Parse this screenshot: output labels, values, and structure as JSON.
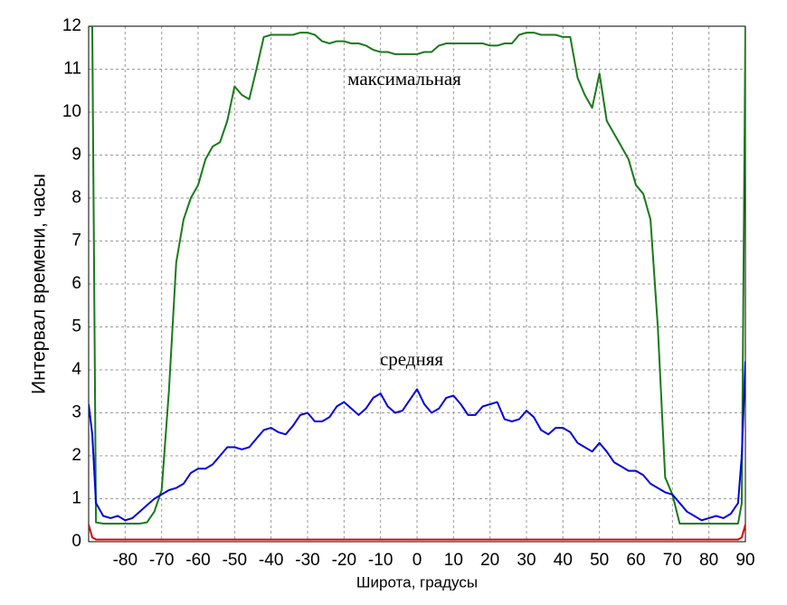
{
  "chart_data": {
    "type": "line",
    "x_label": "Широта, градусы",
    "y_label": "Интервал времени, часы",
    "annotations": [
      "максимальная",
      "средняя"
    ],
    "x": [
      -90,
      -89,
      -88,
      -86,
      -84,
      -82,
      -80,
      -78,
      -76,
      -74,
      -72,
      -70,
      -68,
      -66,
      -64,
      -62,
      -60,
      -58,
      -56,
      -54,
      -52,
      -50,
      -48,
      -46,
      -44,
      -42,
      -40,
      -38,
      -36,
      -34,
      -32,
      -30,
      -28,
      -26,
      -24,
      -22,
      -20,
      -18,
      -16,
      -14,
      -12,
      -10,
      -8,
      -6,
      -4,
      -2,
      0,
      2,
      4,
      6,
      8,
      10,
      12,
      14,
      16,
      18,
      20,
      22,
      24,
      26,
      28,
      30,
      32,
      34,
      36,
      38,
      40,
      42,
      44,
      46,
      48,
      50,
      52,
      54,
      56,
      58,
      60,
      62,
      64,
      66,
      68,
      70,
      72,
      74,
      76,
      78,
      80,
      82,
      84,
      86,
      88,
      89,
      90
    ],
    "series": [
      {
        "color": "#1a7a1a",
        "values": [
          12,
          12,
          0.45,
          0.42,
          0.42,
          0.42,
          0.42,
          0.42,
          0.42,
          0.45,
          0.7,
          1.2,
          3.5,
          6.5,
          7.5,
          8.0,
          8.3,
          8.9,
          9.2,
          9.3,
          9.8,
          10.6,
          10.4,
          10.3,
          11.0,
          11.75,
          11.8,
          11.8,
          11.8,
          11.8,
          11.85,
          11.85,
          11.8,
          11.65,
          11.6,
          11.65,
          11.65,
          11.6,
          11.6,
          11.55,
          11.45,
          11.4,
          11.4,
          11.35,
          11.35,
          11.35,
          11.35,
          11.4,
          11.4,
          11.55,
          11.6,
          11.6,
          11.6,
          11.6,
          11.6,
          11.6,
          11.55,
          11.55,
          11.6,
          11.6,
          11.8,
          11.85,
          11.85,
          11.8,
          11.8,
          11.8,
          11.75,
          11.75,
          10.8,
          10.4,
          10.1,
          10.9,
          9.8,
          9.5,
          9.2,
          8.9,
          8.3,
          8.1,
          7.5,
          5.0,
          1.5,
          1.1,
          0.42,
          0.42,
          0.42,
          0.42,
          0.42,
          0.42,
          0.42,
          0.42,
          0.42,
          0.9,
          12
        ]
      },
      {
        "color": "#0000e0",
        "values": [
          3.2,
          2.5,
          0.9,
          0.6,
          0.55,
          0.6,
          0.5,
          0.55,
          0.7,
          0.85,
          1.0,
          1.1,
          1.2,
          1.25,
          1.35,
          1.6,
          1.7,
          1.7,
          1.8,
          2.0,
          2.2,
          2.2,
          2.15,
          2.2,
          2.4,
          2.6,
          2.65,
          2.55,
          2.5,
          2.7,
          2.95,
          3.0,
          2.8,
          2.8,
          2.9,
          3.15,
          3.25,
          3.1,
          2.95,
          3.1,
          3.35,
          3.45,
          3.15,
          3.0,
          3.05,
          3.3,
          3.55,
          3.2,
          3.0,
          3.1,
          3.35,
          3.4,
          3.2,
          2.95,
          2.95,
          3.15,
          3.2,
          3.25,
          2.85,
          2.8,
          2.85,
          3.05,
          2.9,
          2.6,
          2.5,
          2.65,
          2.65,
          2.55,
          2.3,
          2.2,
          2.1,
          2.3,
          2.1,
          1.85,
          1.75,
          1.65,
          1.65,
          1.55,
          1.35,
          1.25,
          1.15,
          1.1,
          0.9,
          0.7,
          0.6,
          0.5,
          0.55,
          0.6,
          0.55,
          0.65,
          0.9,
          2.0,
          4.2
        ]
      },
      {
        "color": "#e00000",
        "values": [
          0.4,
          0.1,
          0.05,
          0.05,
          0.05,
          0.05,
          0.05,
          0.05,
          0.05,
          0.05,
          0.05,
          0.05,
          0.05,
          0.05,
          0.05,
          0.05,
          0.05,
          0.05,
          0.05,
          0.05,
          0.05,
          0.05,
          0.05,
          0.05,
          0.05,
          0.05,
          0.05,
          0.05,
          0.05,
          0.05,
          0.05,
          0.05,
          0.05,
          0.05,
          0.05,
          0.05,
          0.05,
          0.05,
          0.05,
          0.05,
          0.05,
          0.05,
          0.05,
          0.05,
          0.05,
          0.05,
          0.05,
          0.05,
          0.05,
          0.05,
          0.05,
          0.05,
          0.05,
          0.05,
          0.05,
          0.05,
          0.05,
          0.05,
          0.05,
          0.05,
          0.05,
          0.05,
          0.05,
          0.05,
          0.05,
          0.05,
          0.05,
          0.05,
          0.05,
          0.05,
          0.05,
          0.05,
          0.05,
          0.05,
          0.05,
          0.05,
          0.05,
          0.05,
          0.05,
          0.05,
          0.05,
          0.05,
          0.05,
          0.05,
          0.05,
          0.05,
          0.05,
          0.05,
          0.05,
          0.05,
          0.05,
          0.1,
          0.4
        ]
      }
    ],
    "xlim": [
      -90,
      90
    ],
    "xticks": [
      -80,
      -70,
      -60,
      -50,
      -40,
      -30,
      -20,
      -10,
      0,
      10,
      20,
      30,
      40,
      50,
      60,
      70,
      80,
      90
    ],
    "ylim": [
      0,
      12
    ],
    "yticks": [
      0,
      1,
      2,
      3,
      4,
      5,
      6,
      7,
      8,
      9,
      10,
      11,
      12
    ],
    "grid": true
  }
}
